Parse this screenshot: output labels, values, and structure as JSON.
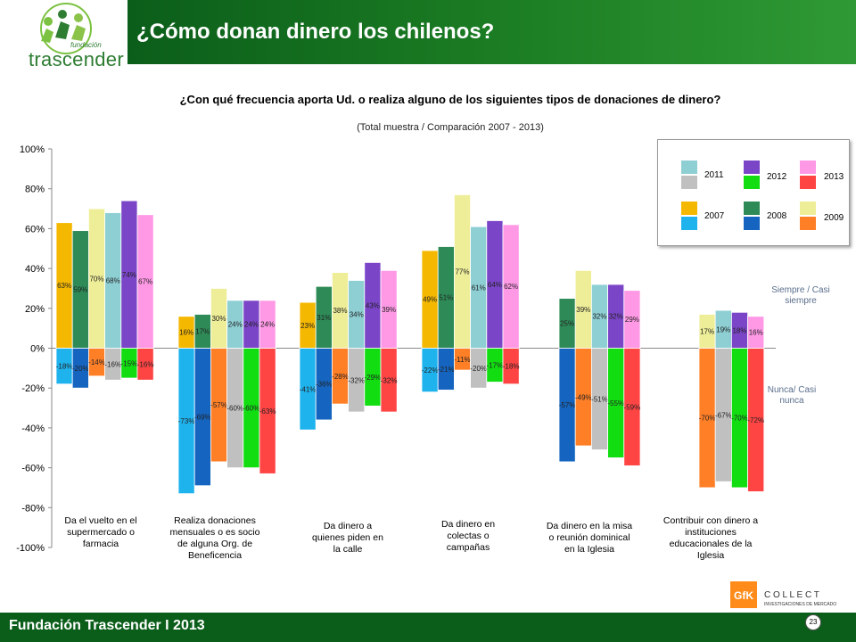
{
  "header": {
    "title": "¿Cómo donan dinero los chilenos?"
  },
  "logo": {
    "name": "trascender",
    "small": "fundación"
  },
  "question": "¿Con qué frecuencia aporta Ud. o realiza alguno de los siguientes tipos de donaciones de dinero?",
  "subtitle": "(Total muestra / Comparación 2007 - 2013)",
  "footer": {
    "text": "Fundación Trascender I 2013",
    "page": "23"
  },
  "side_labels": {
    "positive": "Siempre / Casi siempre",
    "negative": "Nunca/ Casi nunca"
  },
  "gfk": {
    "brand": "GfK",
    "name": "C O L L E C T",
    "tagline": "INVESTIGACIONES DE MERCADO"
  },
  "legend": {
    "years": [
      "2011",
      "2012",
      "2013",
      "2007",
      "2008",
      "2009"
    ]
  },
  "colors": {
    "pos": {
      "2007": "#f5b800",
      "2008": "#2e8b57",
      "2009": "#eeee99",
      "2011": "#8ecfd4",
      "2012": "#7b45c8",
      "2013": "#ff99e6"
    },
    "neg": {
      "2007": "#1fb3ee",
      "2008": "#1565c0",
      "2009": "#ff7f27",
      "2011": "#c0c0c0",
      "2012": "#11dd11",
      "2013": "#ff4444"
    }
  },
  "chart_data": {
    "type": "bar",
    "ylim": [
      -100,
      100
    ],
    "yticks": [
      "100%",
      "80%",
      "60%",
      "40%",
      "20%",
      "0%",
      "-20%",
      "-40%",
      "-60%",
      "-80%",
      "-100%"
    ],
    "categories": [
      "Da el vuelto en el supermercado o farmacia",
      "Realiza donaciones mensuales o es socio de alguna Org. de Beneficencia",
      "Da dinero a quienes piden en la calle",
      "Da dinero en colectas o campañas",
      "Da dinero en la misa o reunión dominical en la Iglesia",
      "Contribuir con dinero a instituciones educacionales de la Iglesia"
    ],
    "groups": [
      {
        "years": [
          "2007",
          "2008",
          "2009",
          "2011",
          "2012",
          "2013"
        ],
        "pos": [
          63,
          59,
          70,
          68,
          74,
          67
        ],
        "neg": [
          -18,
          -20,
          -14,
          -16,
          -15,
          -16
        ]
      },
      {
        "years": [
          "2007",
          "2008",
          "2009",
          "2011",
          "2012",
          "2013"
        ],
        "pos": [
          16,
          17,
          30,
          24,
          24,
          24
        ],
        "neg": [
          -73,
          -69,
          -57,
          -60,
          -60,
          -63
        ]
      },
      {
        "years": [
          "2007",
          "2008",
          "2009",
          "2011",
          "2012",
          "2013"
        ],
        "pos": [
          23,
          31,
          38,
          34,
          43,
          39
        ],
        "neg": [
          -41,
          -36,
          -28,
          -32,
          -29,
          -32
        ]
      },
      {
        "years": [
          "2007",
          "2008",
          "2009",
          "2011",
          "2012",
          "2013"
        ],
        "pos": [
          49,
          51,
          77,
          61,
          64,
          62
        ],
        "neg": [
          -22,
          -21,
          -11,
          -20,
          -17,
          -18
        ]
      },
      {
        "years": [
          "2008",
          "2009",
          "2011",
          "2012",
          "2013"
        ],
        "pos": [
          25,
          39,
          32,
          32,
          29
        ],
        "neg": [
          -57,
          -49,
          -51,
          -55,
          -59
        ]
      },
      {
        "years": [
          "2009",
          "2011",
          "2012",
          "2013"
        ],
        "pos": [
          17,
          19,
          18,
          16
        ],
        "neg": [
          -70,
          -67,
          -70,
          -72
        ]
      }
    ]
  }
}
